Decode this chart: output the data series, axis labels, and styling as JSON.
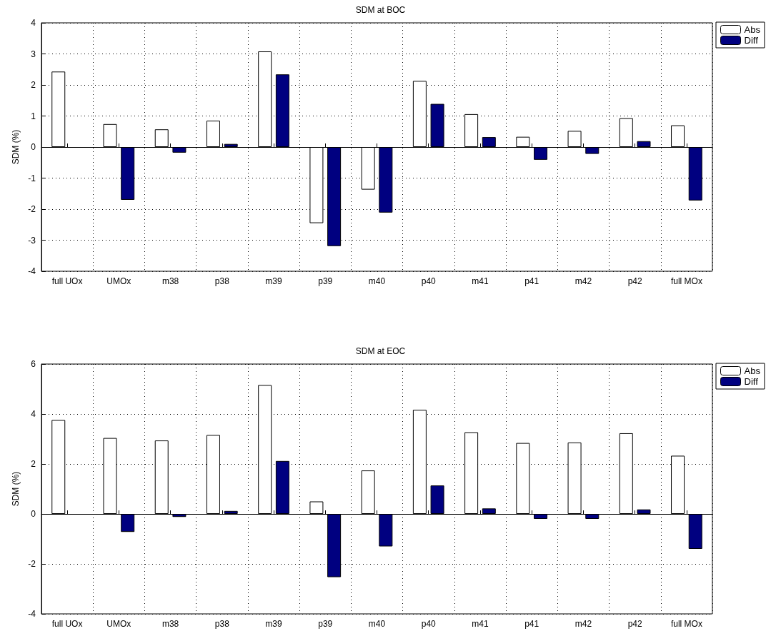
{
  "chart_data": [
    {
      "type": "bar",
      "title": "SDM at BOC",
      "ylabel": "SDM (%)",
      "categories": [
        "full UOx",
        "UMOx",
        "m38",
        "p38",
        "m39",
        "p39",
        "m40",
        "p40",
        "m41",
        "p41",
        "m42",
        "p42",
        "full MOx"
      ],
      "series": [
        {
          "name": "Abs",
          "color": "#ffffff",
          "values": [
            2.43,
            0.74,
            0.57,
            0.85,
            3.08,
            -2.45,
            -1.37,
            2.13,
            1.06,
            0.33,
            0.52,
            0.93,
            0.7
          ]
        },
        {
          "name": "Diff",
          "color": "#000080",
          "values": [
            null,
            -1.7,
            -0.18,
            0.1,
            2.34,
            -3.19,
            -2.11,
            1.39,
            0.32,
            -0.41,
            -0.22,
            0.19,
            -1.72
          ]
        }
      ],
      "ylim": [
        -4,
        4
      ],
      "yticks": [
        -4,
        -3,
        -2,
        -1,
        0,
        1,
        2,
        3,
        4
      ],
      "grid": true,
      "legend": "top right"
    },
    {
      "type": "bar",
      "title": "SDM at EOC",
      "ylabel": "SDM (%)",
      "categories": [
        "full UOx",
        "UMOx",
        "m38",
        "p38",
        "m39",
        "p39",
        "m40",
        "p40",
        "m41",
        "p41",
        "m42",
        "p42",
        "full MOx"
      ],
      "series": [
        {
          "name": "Abs",
          "color": "#ffffff",
          "values": [
            3.76,
            3.04,
            2.94,
            3.16,
            5.16,
            0.5,
            1.74,
            4.17,
            3.27,
            2.84,
            2.86,
            3.23,
            2.33
          ]
        },
        {
          "name": "Diff",
          "color": "#000080",
          "values": [
            null,
            -0.72,
            -0.12,
            0.12,
            2.12,
            -2.53,
            -1.3,
            1.14,
            0.22,
            -0.2,
            -0.2,
            0.18,
            -1.4
          ]
        }
      ],
      "ylim": [
        -4,
        6
      ],
      "yticks": [
        -4,
        -2,
        0,
        2,
        4,
        6
      ],
      "grid": true,
      "legend": "top right"
    }
  ]
}
